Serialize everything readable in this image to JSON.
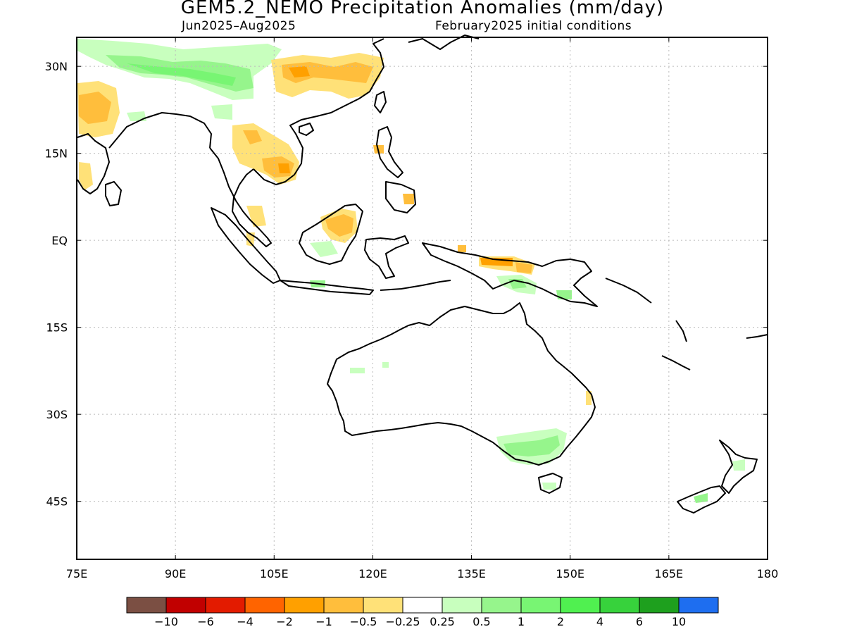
{
  "title": "GEM5.2_NEMO Precipitation Anomalies (mm/day)",
  "period": "Jun2025–Aug2025",
  "initial_conditions": "February2025 initial conditions",
  "map": {
    "lon_range": [
      75,
      180
    ],
    "lat_range": [
      -55,
      35
    ],
    "lon_ticks": [
      "75E",
      "90E",
      "105E",
      "120E",
      "135E",
      "150E",
      "165E",
      "180"
    ],
    "lat_ticks": [
      "30N",
      "15N",
      "EQ",
      "15S",
      "30S",
      "45S"
    ],
    "gridlines": "dotted"
  },
  "legend": {
    "colors": [
      "#7b4f43",
      "#c10000",
      "#e31b00",
      "#ff6400",
      "#ffa000",
      "#ffbe3c",
      "#ffe178",
      "#ffffff",
      "#c8ffbe",
      "#96f58c",
      "#78f573",
      "#50f050",
      "#37d23c",
      "#1ea01e",
      "#1e6ef0"
    ],
    "labels": [
      "−10",
      "−6",
      "−4",
      "−2",
      "−1",
      "−0.5",
      "−0.25",
      "0.25",
      "0.5",
      "1",
      "2",
      "4",
      "6",
      "10"
    ]
  }
}
